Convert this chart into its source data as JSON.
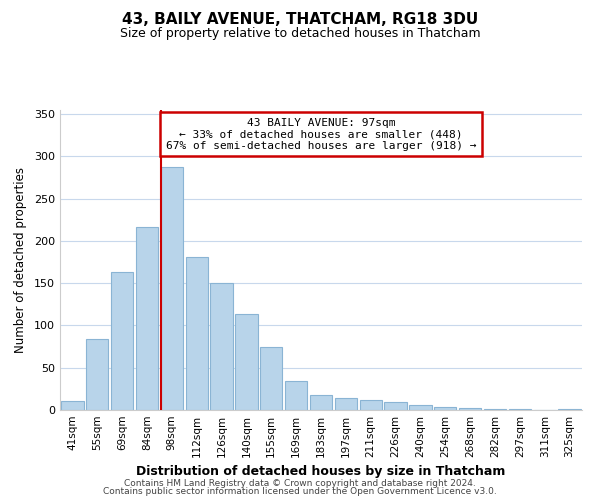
{
  "title": "43, BAILY AVENUE, THATCHAM, RG18 3DU",
  "subtitle": "Size of property relative to detached houses in Thatcham",
  "xlabel": "Distribution of detached houses by size in Thatcham",
  "ylabel": "Number of detached properties",
  "bar_labels": [
    "41sqm",
    "55sqm",
    "69sqm",
    "84sqm",
    "98sqm",
    "112sqm",
    "126sqm",
    "140sqm",
    "155sqm",
    "169sqm",
    "183sqm",
    "197sqm",
    "211sqm",
    "226sqm",
    "240sqm",
    "254sqm",
    "268sqm",
    "282sqm",
    "297sqm",
    "311sqm",
    "325sqm"
  ],
  "bar_values": [
    11,
    84,
    163,
    216,
    287,
    181,
    150,
    114,
    75,
    34,
    18,
    14,
    12,
    9,
    6,
    3,
    2,
    1,
    1,
    0,
    1
  ],
  "bar_color": "#b8d4ea",
  "bar_edge_color": "#8ab4d4",
  "vline_x": 4,
  "vline_color": "#cc0000",
  "annotation_box_edge": "#cc0000",
  "marker_label": "43 BAILY AVENUE: 97sqm",
  "annotation_line1": "← 33% of detached houses are smaller (448)",
  "annotation_line2": "67% of semi-detached houses are larger (918) →",
  "ylim": [
    0,
    355
  ],
  "yticks": [
    0,
    50,
    100,
    150,
    200,
    250,
    300,
    350
  ],
  "footer_line1": "Contains HM Land Registry data © Crown copyright and database right 2024.",
  "footer_line2": "Contains public sector information licensed under the Open Government Licence v3.0.",
  "background_color": "#ffffff",
  "grid_color": "#c8d8ec"
}
